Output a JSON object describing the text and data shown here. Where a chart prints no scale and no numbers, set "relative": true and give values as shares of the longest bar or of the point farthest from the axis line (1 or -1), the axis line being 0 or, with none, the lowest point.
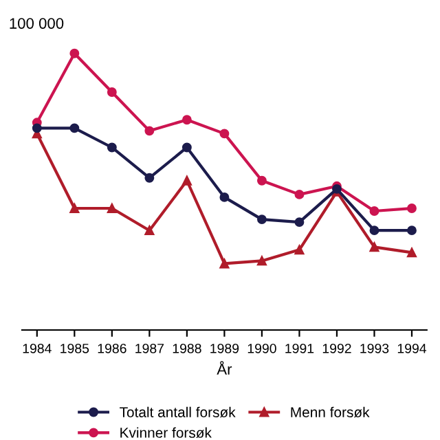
{
  "chart_data": {
    "type": "line",
    "relative": true,
    "ylabel": "100 000",
    "xlabel": "År",
    "categories": [
      "1984",
      "1985",
      "1986",
      "1987",
      "1988",
      "1989",
      "1990",
      "1991",
      "1992",
      "1993",
      "1994"
    ],
    "series": [
      {
        "name": "Totalt antall forsøk",
        "color": "#1c1c4c",
        "marker": "circle",
        "values": [
          0.73,
          0.73,
          0.66,
          0.55,
          0.66,
          0.48,
          0.4,
          0.39,
          0.51,
          0.36,
          0.36
        ]
      },
      {
        "name": "Kvinner forsøk",
        "color": "#cc1450",
        "marker": "circle",
        "values": [
          0.75,
          1,
          0.86,
          0.72,
          0.76,
          0.71,
          0.54,
          0.49,
          0.52,
          0.43,
          0.44
        ]
      },
      {
        "name": "Menn forsøk",
        "color": "#b01c2a",
        "marker": "triangle",
        "values": [
          0.71,
          0.44,
          0.44,
          0.36,
          0.54,
          0.24,
          0.25,
          0.29,
          0.5,
          0.3,
          0.28
        ]
      }
    ],
    "legend": "bottom",
    "grid": false,
    "line_style": "solid"
  }
}
